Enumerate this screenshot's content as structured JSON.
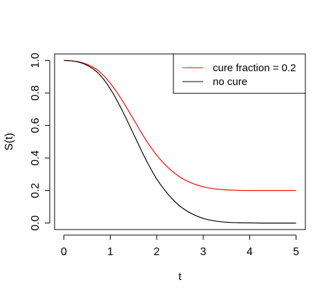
{
  "chart_data": {
    "type": "line",
    "title": "",
    "xlabel": "t",
    "ylabel": "S(t)",
    "xlim": [
      -0.2,
      5.2
    ],
    "ylim": [
      -0.04,
      1.04
    ],
    "x_ticks": [
      "0",
      "1",
      "2",
      "3",
      "4",
      "5"
    ],
    "y_ticks": [
      "0.0",
      "0.2",
      "0.4",
      "0.6",
      "0.8",
      "1.0"
    ],
    "grid": false,
    "legend": {
      "position": "top-right",
      "entries": [
        {
          "label": "cure fraction = 0.2",
          "color": "#ff0000"
        },
        {
          "label": "no cure",
          "color": "#000000"
        }
      ]
    },
    "series": [
      {
        "name": "cure fraction = 0.2",
        "color": "#ff0000",
        "x": [
          0.0,
          0.25,
          0.5,
          0.75,
          1.0,
          1.25,
          1.5,
          1.75,
          2.0,
          2.25,
          2.5,
          2.75,
          3.0,
          3.25,
          3.5,
          3.75,
          4.0,
          4.25,
          4.5,
          4.75,
          5.0
        ],
        "y": [
          1.0,
          0.995,
          0.976,
          0.935,
          0.86,
          0.757,
          0.638,
          0.519,
          0.417,
          0.34,
          0.283,
          0.246,
          0.223,
          0.21,
          0.204,
          0.201,
          0.2,
          0.2,
          0.2,
          0.2,
          0.2
        ]
      },
      {
        "name": "no cure",
        "color": "#000000",
        "x": [
          0.0,
          0.25,
          0.5,
          0.75,
          1.0,
          1.25,
          1.5,
          1.75,
          2.0,
          2.25,
          2.5,
          2.75,
          3.0,
          3.25,
          3.5,
          3.75,
          4.0,
          4.25,
          4.5,
          4.75,
          5.0
        ],
        "y": [
          1.0,
          0.994,
          0.97,
          0.919,
          0.825,
          0.696,
          0.548,
          0.399,
          0.271,
          0.175,
          0.104,
          0.058,
          0.029,
          0.013,
          0.005,
          0.002,
          0.001,
          0.0,
          0.0,
          0.0,
          0.0
        ]
      }
    ]
  }
}
